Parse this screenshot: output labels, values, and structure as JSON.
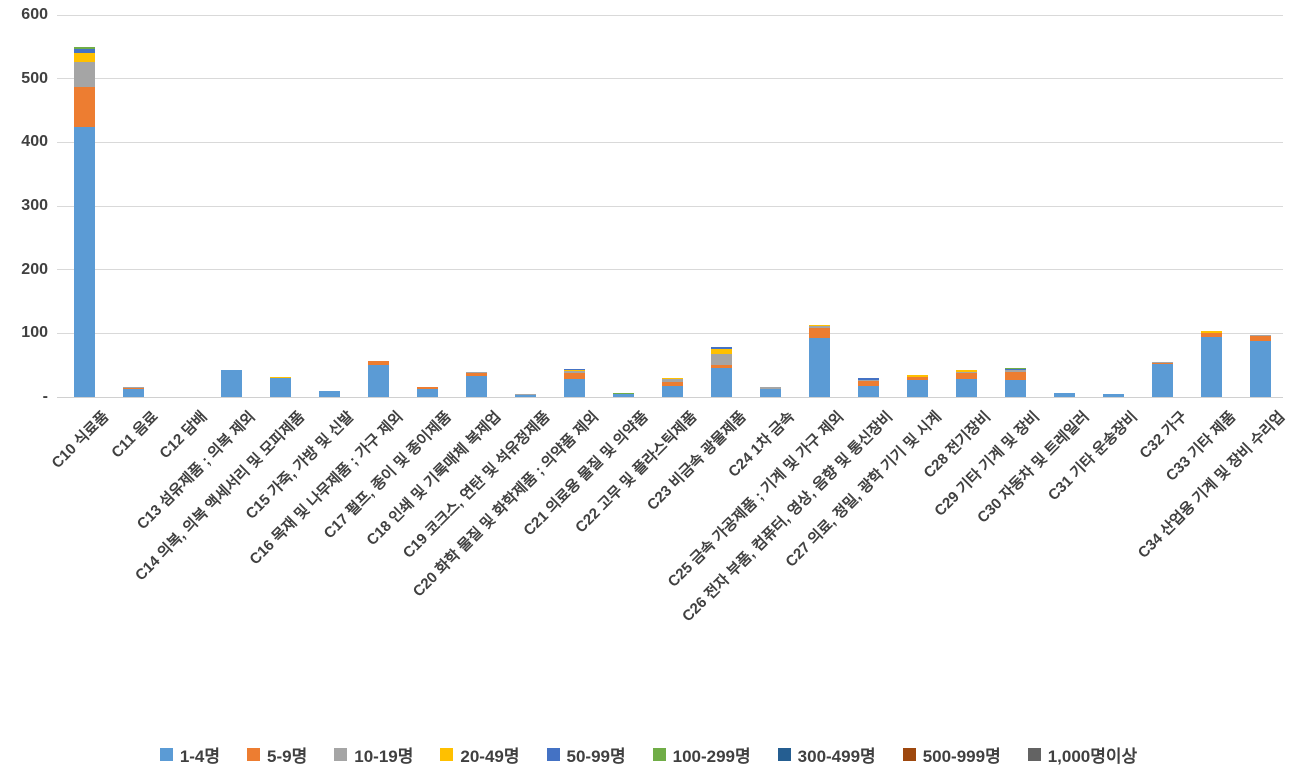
{
  "chart_data": {
    "type": "bar",
    "stacked": true,
    "title": "",
    "xlabel": "",
    "ylabel": "",
    "ylim": [
      0,
      600
    ],
    "ytick_interval": 100,
    "ytick_labels": [
      "-",
      "100",
      "200",
      "300",
      "400",
      "500",
      "600"
    ],
    "grid": true,
    "legend_position": "bottom",
    "categories": [
      "C10 식료품",
      "C11 음료",
      "C12 담배",
      "C13 섬유제품 ; 의복 제외",
      "C14 의복, 의복 액세서리 및 모피제품",
      "C15 가죽, 가방 및 신발",
      "C16 목재 및 나무제품 ; 가구 제외",
      "C17 펄프, 종이 및 종이제품",
      "C18 인쇄 및 기록매체 복제업",
      "C19 코크스, 연탄 및 석유정제품",
      "C20 화학 물질 및 화학제품 ; 의약품 제외",
      "C21 의료용 물질 및 의약품",
      "C22 고무 및 플라스틱제품",
      "C23 비금속 광물제품",
      "C24 1차 금속",
      "C25 금속 가공제품 ; 기계 및 가구 제외",
      "C26 전자 부품, 컴퓨터, 영상, 음향 및 통신장비",
      "C27 의료, 정밀, 광학 기기 및 시계",
      "C28 전기장비",
      "C29 기타 기계 및 장비",
      "C30 자동차 및 트레일러",
      "C31 기타 운송장비",
      "C32 가구",
      "C33 기타 제품",
      "C34 산업용 기계 및 장비 수리업"
    ],
    "series": [
      {
        "name": "1-4명",
        "color": "#5B9BD5",
        "values": [
          424,
          12,
          0,
          42,
          30,
          10,
          51,
          13,
          33,
          4,
          28,
          5,
          18,
          46,
          13,
          93,
          17,
          26,
          28,
          26,
          7,
          5,
          53,
          95,
          88
        ]
      },
      {
        "name": "5-9명",
        "color": "#ED7D31",
        "values": [
          63,
          3,
          0,
          0,
          1,
          0,
          5,
          2,
          4,
          0,
          10,
          0,
          6,
          5,
          0,
          16,
          8,
          6,
          9,
          13,
          0,
          0,
          1,
          6,
          8
        ]
      },
      {
        "name": "10-19명",
        "color": "#A5A5A5",
        "values": [
          39,
          1,
          0,
          0,
          0,
          0,
          0,
          0,
          2,
          1,
          4,
          0,
          4,
          17,
          3,
          2,
          2,
          0,
          3,
          3,
          0,
          0,
          1,
          0,
          1
        ]
      },
      {
        "name": "20-49명",
        "color": "#FFC000",
        "values": [
          14,
          0,
          0,
          0,
          1,
          0,
          0,
          0,
          0,
          0,
          1,
          1,
          2,
          8,
          0,
          2,
          0,
          2,
          2,
          0,
          0,
          0,
          0,
          2,
          0
        ]
      },
      {
        "name": "50-99명",
        "color": "#4472C4",
        "values": [
          7,
          0,
          0,
          0,
          0,
          0,
          0,
          0,
          0,
          0,
          1,
          0,
          0,
          3,
          0,
          0,
          3,
          0,
          0,
          3,
          0,
          0,
          0,
          0,
          0
        ]
      },
      {
        "name": "100-299명",
        "color": "#70AD47",
        "values": [
          3,
          0,
          0,
          0,
          0,
          0,
          0,
          0,
          0,
          0,
          0,
          1,
          0,
          0,
          0,
          0,
          0,
          0,
          0,
          1,
          0,
          0,
          0,
          0,
          0
        ]
      },
      {
        "name": "300-499명",
        "color": "#255E91",
        "values": [
          0,
          0,
          0,
          0,
          0,
          0,
          0,
          0,
          0,
          0,
          0,
          0,
          0,
          0,
          0,
          0,
          0,
          0,
          0,
          0,
          0,
          0,
          0,
          0,
          0
        ]
      },
      {
        "name": "500-999명",
        "color": "#9E480E",
        "values": [
          0,
          0,
          0,
          0,
          0,
          0,
          0,
          0,
          0,
          0,
          0,
          0,
          0,
          0,
          0,
          0,
          0,
          0,
          0,
          0,
          0,
          0,
          0,
          0,
          0
        ]
      },
      {
        "name": "1,000명이상",
        "color": "#636363",
        "values": [
          0,
          0,
          0,
          0,
          0,
          0,
          0,
          0,
          0,
          0,
          0,
          0,
          0,
          0,
          0,
          0,
          0,
          0,
          0,
          0,
          0,
          0,
          0,
          0,
          0
        ]
      }
    ],
    "colors": {
      "gridline": "#D9D9D9",
      "axis_line": "#D0D0D0",
      "label_text": "#404040"
    }
  }
}
